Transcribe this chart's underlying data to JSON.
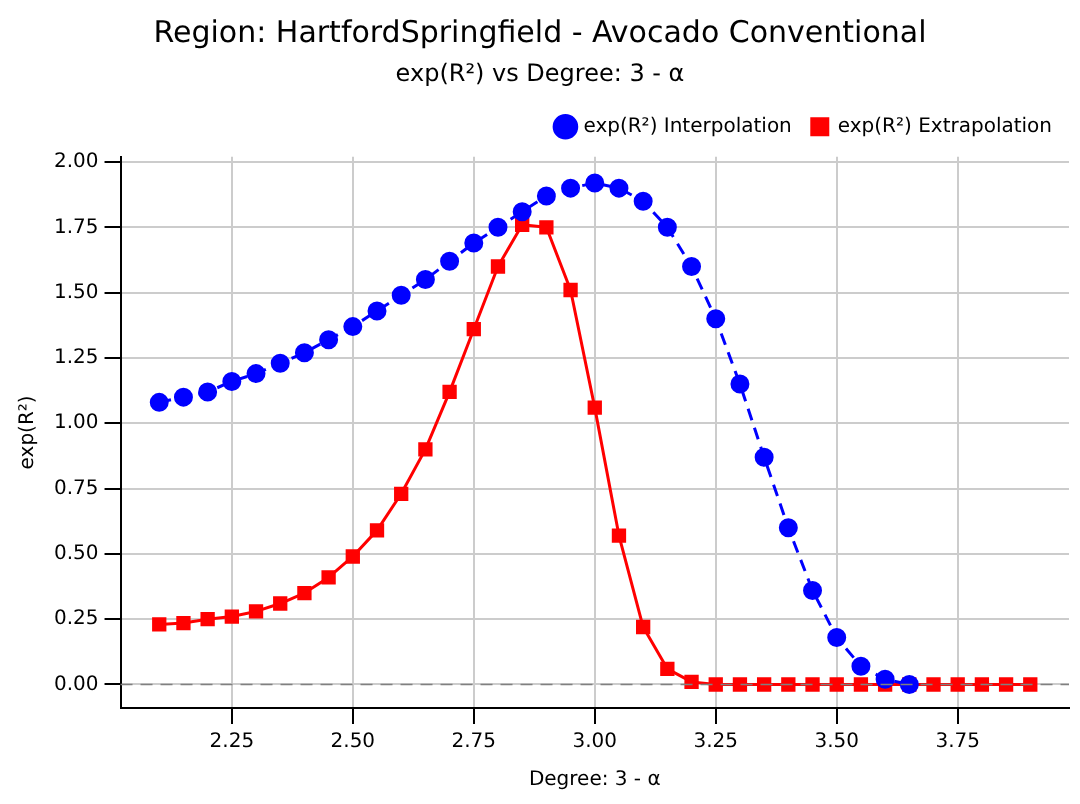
{
  "chart_data": {
    "type": "line",
    "title": "Region: HartfordSpringfield - Avocado Conventional",
    "subtitle": "exp(R²) vs Degree: 3 - α",
    "xlabel": "Degree: 3 - α",
    "ylabel": "exp(R²)",
    "series": [
      {
        "name": "exp(R²) Interpolation",
        "color": "#0000ff",
        "marker": "circle",
        "line_style": "dashed",
        "x": [
          2.1,
          2.15,
          2.2,
          2.25,
          2.3,
          2.35,
          2.4,
          2.45,
          2.5,
          2.55,
          2.6,
          2.65,
          2.7,
          2.75,
          2.8,
          2.85,
          2.9,
          2.95,
          3.0,
          3.05,
          3.1,
          3.15,
          3.2,
          3.25,
          3.3,
          3.35,
          3.4,
          3.45,
          3.5,
          3.55,
          3.6,
          3.65
        ],
        "values": [
          1.08,
          1.1,
          1.12,
          1.16,
          1.19,
          1.23,
          1.27,
          1.32,
          1.37,
          1.43,
          1.49,
          1.55,
          1.62,
          1.69,
          1.75,
          1.81,
          1.87,
          1.9,
          1.92,
          1.9,
          1.85,
          1.75,
          1.6,
          1.4,
          1.15,
          0.87,
          0.6,
          0.36,
          0.18,
          0.07,
          0.02,
          0.0
        ]
      },
      {
        "name": "exp(R²) Extrapolation",
        "color": "#ff0000",
        "marker": "square",
        "line_style": "solid",
        "x": [
          2.1,
          2.15,
          2.2,
          2.25,
          2.3,
          2.35,
          2.4,
          2.45,
          2.5,
          2.55,
          2.6,
          2.65,
          2.7,
          2.75,
          2.8,
          2.85,
          2.9,
          2.95,
          3.0,
          3.05,
          3.1,
          3.15,
          3.2,
          3.25,
          3.3,
          3.35,
          3.4,
          3.45,
          3.5,
          3.55,
          3.6,
          3.65,
          3.7,
          3.75,
          3.8,
          3.85,
          3.9
        ],
        "values": [
          0.23,
          0.235,
          0.25,
          0.26,
          0.28,
          0.31,
          0.35,
          0.41,
          0.49,
          0.59,
          0.73,
          0.9,
          1.12,
          1.36,
          1.6,
          1.76,
          1.75,
          1.51,
          1.06,
          0.57,
          0.22,
          0.06,
          0.01,
          0.0,
          0.0,
          0.0,
          0.0,
          0.0,
          0.0,
          0.0,
          0.0,
          0.0,
          0.0,
          0.0,
          0.0,
          0.0,
          0.0
        ]
      }
    ],
    "xlim": [
      2.02,
      3.98
    ],
    "xticks": [
      {
        "value": 2.25,
        "label": "2.25"
      },
      {
        "value": 2.5,
        "label": "2.50"
      },
      {
        "value": 2.75,
        "label": "2.75"
      },
      {
        "value": 3.0,
        "label": "3.00"
      },
      {
        "value": 3.25,
        "label": "3.25"
      },
      {
        "value": 3.5,
        "label": "3.50"
      },
      {
        "value": 3.75,
        "label": "3.75"
      }
    ],
    "ylim": [
      -0.09,
      2.02
    ],
    "yticks": [
      {
        "value": 0,
        "label": "0.00"
      },
      {
        "value": 0.25,
        "label": "0.25"
      },
      {
        "value": 0.5,
        "label": "0.50"
      },
      {
        "value": 0.75,
        "label": "0.75"
      },
      {
        "value": 1.0,
        "label": "1.00"
      },
      {
        "value": 1.25,
        "label": "1.25"
      },
      {
        "value": 1.5,
        "label": "1.50"
      },
      {
        "value": 1.75,
        "label": "1.75"
      },
      {
        "value": 2.0,
        "label": "2.00"
      }
    ],
    "ref_lines": [
      {
        "axis": "y",
        "value": 0,
        "color": "#808080",
        "line_style": "dashed"
      }
    ],
    "grid": true,
    "legend": "top right"
  }
}
